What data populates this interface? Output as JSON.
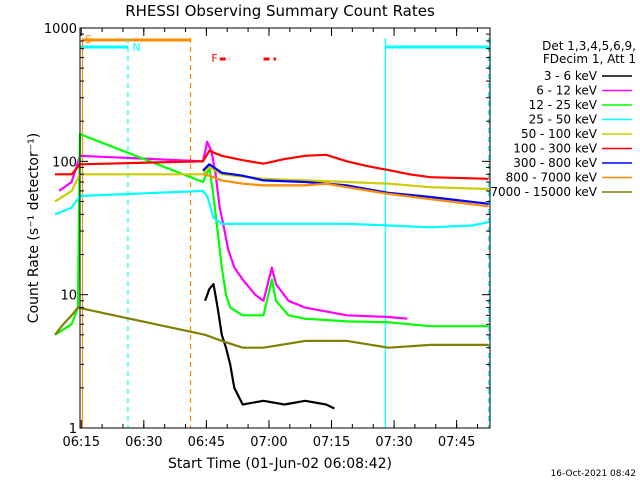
{
  "chart_data": {
    "type": "line",
    "title": "RHESSI Observing Summary Count Rates",
    "xlabel": "Start Time (01-Jun-02 06:08:42)",
    "ylabel": "Count Rate (s⁻¹ detector⁻¹)",
    "yscale": "log",
    "ylim": [
      1,
      1000
    ],
    "xlim_minutes": [
      6.0,
      104.3
    ],
    "x_unit": "minutes after 06:08:42",
    "x_ticks": [
      {
        "label": "06:15",
        "t": 6.3
      },
      {
        "label": "06:30",
        "t": 21.3
      },
      {
        "label": "06:45",
        "t": 36.3
      },
      {
        "label": "07:00",
        "t": 51.3
      },
      {
        "label": "07:15",
        "t": 66.3
      },
      {
        "label": "07:30",
        "t": 81.3
      },
      {
        "label": "07:45",
        "t": 96.3
      }
    ],
    "y_ticks": [
      {
        "label": "1",
        "v": 1
      },
      {
        "label": "10",
        "v": 10
      },
      {
        "label": "100",
        "v": 100
      },
      {
        "label": "1000",
        "v": 1000
      }
    ],
    "legend_header": [
      "Det 1,3,4,5,6,9,",
      "FDecim 1, Att 1"
    ],
    "legend_placement": "right",
    "footer_date": "16-Oct-2021 08:42",
    "markers": {
      "S": {
        "label": "S",
        "t_start": 6.5,
        "t_end": 32.5,
        "color": "#ff8c00"
      },
      "N": {
        "label": "N",
        "color": "#00ffff"
      },
      "F": {
        "label": "F",
        "color": "#ff0000",
        "segments": [
          [
            39.5,
            42.0
          ],
          [
            50.0,
            53.0
          ]
        ]
      }
    },
    "night_boundaries": [
      {
        "t": 6.6,
        "color": "#ff8c00",
        "style": "solid"
      },
      {
        "t": 17.5,
        "color": "#00ffff",
        "style": "dashed"
      },
      {
        "t": 32.5,
        "color": "#ff8c00",
        "style": "dashed"
      },
      {
        "t": 79.2,
        "color": "#00ffff",
        "style": "solid"
      },
      {
        "t": 104.0,
        "color": "#00ffff",
        "style": "dashed"
      }
    ],
    "cyan_top_bars": [
      [
        0.0,
        17.5
      ],
      [
        79.2,
        104.0
      ]
    ],
    "series": [
      {
        "name": "3 - 6 keV",
        "color": "#000000",
        "values": [
          [
            36.0,
            9
          ],
          [
            37.0,
            11
          ],
          [
            38.0,
            12
          ],
          [
            39.0,
            8
          ],
          [
            40.0,
            5
          ],
          [
            41.0,
            4
          ],
          [
            42.0,
            3
          ],
          [
            43.0,
            2
          ],
          [
            45.0,
            1.5
          ],
          [
            50.0,
            1.6
          ],
          [
            55.0,
            1.5
          ],
          [
            60.0,
            1.6
          ],
          [
            65.0,
            1.5
          ],
          [
            67.0,
            1.4
          ]
        ]
      },
      {
        "name": "6 - 12 keV",
        "color": "#ff00ff",
        "values": [
          [
            1.0,
            60
          ],
          [
            4.0,
            70
          ],
          [
            6.0,
            110
          ],
          [
            35.5,
            100
          ],
          [
            36.5,
            140
          ],
          [
            37.5,
            120
          ],
          [
            38.5,
            80
          ],
          [
            39.5,
            45
          ],
          [
            40.5,
            32
          ],
          [
            41.5,
            22
          ],
          [
            43.0,
            16
          ],
          [
            45.0,
            13
          ],
          [
            48.0,
            10
          ],
          [
            50.0,
            9
          ],
          [
            52.0,
            16
          ],
          [
            53.0,
            12
          ],
          [
            56.0,
            9
          ],
          [
            60.0,
            8
          ],
          [
            70.0,
            7
          ],
          [
            80.0,
            6.8
          ],
          [
            84.5,
            6.6
          ]
        ]
      },
      {
        "name": "12 - 25 keV",
        "color": "#00ff00",
        "values": [
          [
            0.0,
            5
          ],
          [
            4.0,
            6
          ],
          [
            5.5,
            8
          ],
          [
            6.0,
            160
          ],
          [
            35.5,
            70
          ],
          [
            37.0,
            90
          ],
          [
            38.0,
            55
          ],
          [
            39.0,
            30
          ],
          [
            40.0,
            16
          ],
          [
            41.0,
            10
          ],
          [
            42.0,
            8
          ],
          [
            45.0,
            7
          ],
          [
            50.0,
            7
          ],
          [
            52.0,
            13
          ],
          [
            53.0,
            9
          ],
          [
            56.0,
            7
          ],
          [
            60.0,
            6.6
          ],
          [
            70.0,
            6.3
          ],
          [
            80.0,
            6.2
          ],
          [
            90.0,
            5.8
          ],
          [
            104.0,
            5.8
          ]
        ]
      },
      {
        "name": "25 - 50 keV",
        "color": "#00ffff",
        "values": [
          [
            0.0,
            40
          ],
          [
            4.0,
            45
          ],
          [
            6.0,
            55
          ],
          [
            35.5,
            60
          ],
          [
            36.5,
            55
          ],
          [
            38.0,
            38
          ],
          [
            40.0,
            34
          ],
          [
            50.0,
            34
          ],
          [
            60.0,
            34
          ],
          [
            70.0,
            34
          ],
          [
            80.0,
            33
          ],
          [
            90.0,
            32
          ],
          [
            100.0,
            33
          ],
          [
            104.0,
            35
          ]
        ]
      },
      {
        "name": "50 - 100 keV",
        "color": "#cccc00",
        "values": [
          [
            0.0,
            50
          ],
          [
            4.0,
            60
          ],
          [
            6.0,
            80
          ],
          [
            35.5,
            80
          ],
          [
            37.0,
            90
          ],
          [
            40.0,
            80
          ],
          [
            50.0,
            74
          ],
          [
            60.0,
            72
          ],
          [
            70.0,
            70
          ],
          [
            80.0,
            68
          ],
          [
            90.0,
            64
          ],
          [
            104.0,
            62
          ]
        ]
      },
      {
        "name": "100 - 300 keV",
        "color": "#ff0000",
        "values": [
          [
            0.0,
            80
          ],
          [
            4.0,
            80
          ],
          [
            6.0,
            95
          ],
          [
            35.5,
            100
          ],
          [
            37.0,
            120
          ],
          [
            40.0,
            110
          ],
          [
            45.0,
            102
          ],
          [
            50.0,
            96
          ],
          [
            55.0,
            104
          ],
          [
            60.0,
            110
          ],
          [
            65.0,
            112
          ],
          [
            70.0,
            100
          ],
          [
            75.0,
            92
          ],
          [
            80.0,
            86
          ],
          [
            85.0,
            80
          ],
          [
            90.0,
            76
          ],
          [
            104.0,
            74
          ]
        ]
      },
      {
        "name": "300 - 800 keV",
        "color": "#0000ff",
        "values": [
          [
            35.5,
            85
          ],
          [
            37.0,
            95
          ],
          [
            40.0,
            82
          ],
          [
            45.0,
            78
          ],
          [
            50.0,
            72
          ],
          [
            60.0,
            70
          ],
          [
            70.0,
            66
          ],
          [
            80.0,
            58
          ],
          [
            90.0,
            54
          ],
          [
            104.0,
            48
          ]
        ]
      },
      {
        "name": "800 - 7000 keV",
        "color": "#ff8c00",
        "values": [
          [
            35.5,
            80
          ],
          [
            37.0,
            78
          ],
          [
            40.0,
            72
          ],
          [
            45.0,
            68
          ],
          [
            50.0,
            66
          ],
          [
            60.0,
            66
          ],
          [
            65.0,
            68
          ],
          [
            70.0,
            64
          ],
          [
            80.0,
            57
          ],
          [
            90.0,
            52
          ],
          [
            104.0,
            46
          ]
        ]
      },
      {
        "name": "7000 - 15000 keV",
        "color": "#808000",
        "values": [
          [
            0.0,
            5
          ],
          [
            2.0,
            6
          ],
          [
            4.0,
            7
          ],
          [
            5.5,
            8
          ],
          [
            36.0,
            5
          ],
          [
            40.0,
            4.5
          ],
          [
            45.0,
            4
          ],
          [
            50.0,
            4
          ],
          [
            60.0,
            4.5
          ],
          [
            70.0,
            4.5
          ],
          [
            80.0,
            4
          ],
          [
            90.0,
            4.2
          ],
          [
            104.0,
            4.2
          ]
        ]
      }
    ]
  }
}
